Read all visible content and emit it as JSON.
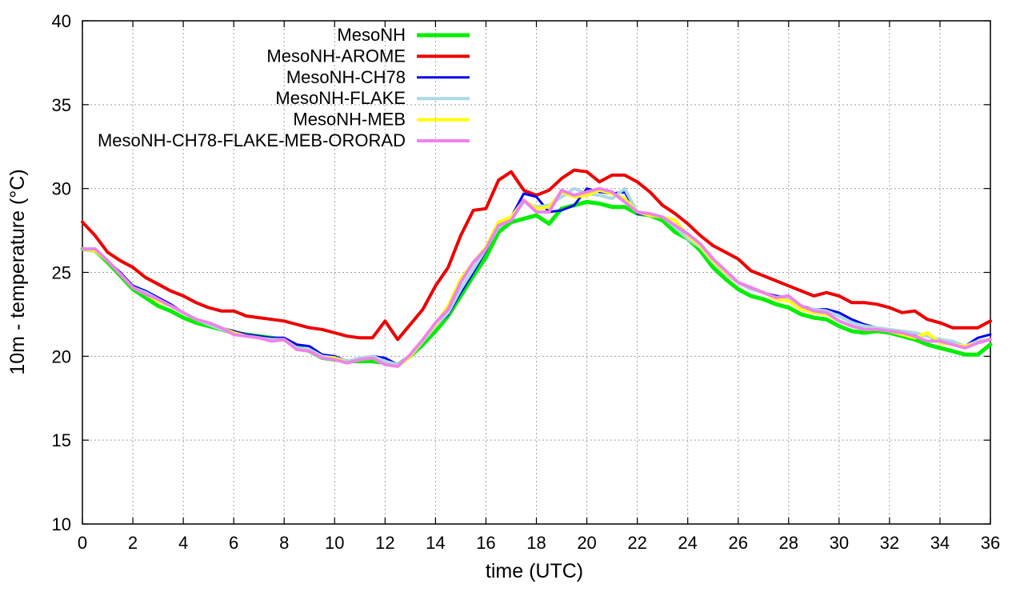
{
  "chart_data": {
    "type": "line",
    "xlabel": "time (UTC)",
    "ylabel": "10m - temperature (°C)",
    "xlim": [
      0,
      36
    ],
    "ylim": [
      10,
      40
    ],
    "xticks": [
      0,
      2,
      4,
      6,
      8,
      10,
      12,
      14,
      16,
      18,
      20,
      22,
      24,
      26,
      28,
      30,
      32,
      34,
      36
    ],
    "yticks": [
      10,
      15,
      20,
      25,
      30,
      35,
      40
    ],
    "grid": true,
    "legend_position": "top-left",
    "series": [
      {
        "name": "MesoNH",
        "color": "#00ee00",
        "width": 5,
        "x": [
          0,
          0.5,
          1,
          1.5,
          2,
          2.5,
          3,
          3.5,
          4,
          4.5,
          5,
          5.5,
          6,
          6.5,
          7,
          7.5,
          8,
          8.5,
          9,
          9.5,
          10,
          10.5,
          11,
          11.5,
          12,
          12.5,
          13,
          13.5,
          14,
          14.5,
          15,
          15.5,
          16,
          16.5,
          17,
          17.5,
          18,
          18.5,
          19,
          19.5,
          20,
          20.5,
          21,
          21.5,
          22,
          22.5,
          23,
          23.5,
          24,
          24.5,
          25,
          25.5,
          26,
          26.5,
          27,
          27.5,
          28,
          28.5,
          29,
          29.5,
          30,
          30.5,
          31,
          31.5,
          32,
          32.5,
          33,
          33.5,
          34,
          34.5,
          35,
          35.5,
          36
        ],
        "y": [
          26.4,
          26.3,
          25.6,
          24.8,
          24.0,
          23.5,
          23.0,
          22.7,
          22.3,
          22.0,
          21.8,
          21.6,
          21.4,
          21.3,
          21.2,
          21.1,
          21.0,
          20.6,
          20.3,
          19.9,
          19.8,
          19.7,
          19.7,
          19.7,
          19.6,
          19.5,
          20.0,
          20.7,
          21.5,
          22.4,
          23.6,
          24.8,
          25.9,
          27.4,
          28.0,
          28.2,
          28.4,
          27.9,
          28.8,
          29.0,
          29.2,
          29.1,
          28.9,
          28.9,
          28.5,
          28.4,
          28.1,
          27.4,
          27.0,
          26.3,
          25.3,
          24.6,
          24.0,
          23.6,
          23.4,
          23.1,
          22.9,
          22.5,
          22.3,
          22.2,
          21.8,
          21.5,
          21.4,
          21.5,
          21.4,
          21.2,
          21.0,
          20.7,
          20.5,
          20.3,
          20.1,
          20.1,
          20.7
        ]
      },
      {
        "name": "MesoNH-AROME",
        "color": "#ee0000",
        "width": 4,
        "x": [
          0,
          0.5,
          1,
          1.5,
          2,
          2.5,
          3,
          3.5,
          4,
          4.5,
          5,
          5.5,
          6,
          6.5,
          7,
          7.5,
          8,
          8.5,
          9,
          9.5,
          10,
          10.5,
          11,
          11.5,
          12,
          12.5,
          13,
          13.5,
          14,
          14.5,
          15,
          15.5,
          16,
          16.5,
          17,
          17.5,
          18,
          18.5,
          19,
          19.5,
          20,
          20.5,
          21,
          21.5,
          22,
          22.5,
          23,
          23.5,
          24,
          24.5,
          25,
          25.5,
          26,
          26.5,
          27,
          27.5,
          28,
          28.5,
          29,
          29.5,
          30,
          30.5,
          31,
          31.5,
          32,
          32.5,
          33,
          33.5,
          34,
          34.5,
          35,
          35.5,
          36
        ],
        "y": [
          28.0,
          27.2,
          26.2,
          25.7,
          25.3,
          24.7,
          24.3,
          23.9,
          23.6,
          23.2,
          22.9,
          22.7,
          22.7,
          22.4,
          22.3,
          22.2,
          22.1,
          21.9,
          21.7,
          21.6,
          21.4,
          21.2,
          21.1,
          21.1,
          22.1,
          21.0,
          21.9,
          22.8,
          24.2,
          25.3,
          27.2,
          28.7,
          28.8,
          30.5,
          31.0,
          29.9,
          29.6,
          29.9,
          30.6,
          31.1,
          31.0,
          30.4,
          30.8,
          30.8,
          30.4,
          29.8,
          29.0,
          28.5,
          27.9,
          27.2,
          26.6,
          26.2,
          25.8,
          25.1,
          24.8,
          24.5,
          24.2,
          23.9,
          23.6,
          23.8,
          23.6,
          23.2,
          23.2,
          23.1,
          22.9,
          22.6,
          22.7,
          22.2,
          22.0,
          21.7,
          21.7,
          21.7,
          22.1
        ]
      },
      {
        "name": "MesoNH-CH78",
        "color": "#0000ee",
        "width": 3,
        "x": [
          0,
          0.5,
          1,
          1.5,
          2,
          2.5,
          3,
          3.5,
          4,
          4.5,
          5,
          5.5,
          6,
          6.5,
          7,
          7.5,
          8,
          8.5,
          9,
          9.5,
          10,
          10.5,
          11,
          11.5,
          12,
          12.5,
          13,
          13.5,
          14,
          14.5,
          15,
          15.5,
          16,
          16.5,
          17,
          17.5,
          18,
          18.5,
          19,
          19.5,
          20,
          20.5,
          21,
          21.5,
          22,
          22.5,
          23,
          23.5,
          24,
          24.5,
          25,
          25.5,
          26,
          26.5,
          27,
          27.5,
          28,
          28.5,
          29,
          29.5,
          30,
          30.5,
          31,
          31.5,
          32,
          32.5,
          33,
          33.5,
          34,
          34.5,
          35,
          35.5,
          36
        ],
        "y": [
          26.4,
          26.3,
          25.7,
          25.0,
          24.2,
          23.9,
          23.5,
          23.1,
          22.6,
          22.2,
          21.9,
          21.7,
          21.5,
          21.3,
          21.2,
          21.1,
          21.1,
          20.7,
          20.6,
          20.1,
          20.0,
          19.7,
          19.9,
          20.0,
          19.9,
          19.5,
          20.0,
          20.9,
          21.8,
          22.5,
          23.8,
          25.0,
          26.3,
          27.8,
          28.3,
          29.7,
          29.5,
          28.6,
          28.7,
          29.0,
          30.0,
          29.8,
          29.7,
          29.8,
          28.5,
          28.4,
          28.3,
          27.8,
          27.1,
          26.6,
          25.6,
          24.9,
          24.4,
          24.0,
          23.8,
          23.6,
          23.5,
          23.0,
          22.8,
          22.8,
          22.6,
          22.2,
          21.9,
          21.7,
          21.6,
          21.4,
          21.3,
          21.2,
          20.9,
          20.8,
          20.6,
          21.1,
          21.3
        ]
      },
      {
        "name": "MesoNH-FLAKE",
        "color": "#add8e6",
        "width": 4,
        "x": [
          0,
          0.5,
          1,
          1.5,
          2,
          2.5,
          3,
          3.5,
          4,
          4.5,
          5,
          5.5,
          6,
          6.5,
          7,
          7.5,
          8,
          8.5,
          9,
          9.5,
          10,
          10.5,
          11,
          11.5,
          12,
          12.5,
          13,
          13.5,
          14,
          14.5,
          15,
          15.5,
          16,
          16.5,
          17,
          17.5,
          18,
          18.5,
          19,
          19.5,
          20,
          20.5,
          21,
          21.5,
          22,
          22.5,
          23,
          23.5,
          24,
          24.5,
          25,
          25.5,
          26,
          26.5,
          27,
          27.5,
          28,
          28.5,
          29,
          29.5,
          30,
          30.5,
          31,
          31.5,
          32,
          32.5,
          33,
          33.5,
          34,
          34.5,
          35,
          35.5,
          36
        ],
        "y": [
          26.4,
          26.3,
          25.7,
          24.9,
          24.1,
          23.8,
          23.4,
          23.0,
          22.6,
          22.2,
          21.9,
          21.6,
          21.4,
          21.2,
          21.1,
          21.0,
          21.0,
          20.5,
          20.4,
          20.0,
          19.9,
          19.7,
          19.9,
          20.0,
          19.7,
          19.5,
          20.0,
          20.9,
          21.8,
          22.6,
          24.0,
          25.2,
          26.4,
          27.7,
          28.2,
          29.2,
          28.9,
          29.0,
          29.5,
          30.0,
          29.7,
          29.6,
          29.4,
          30.0,
          28.6,
          28.4,
          28.3,
          27.7,
          27.0,
          26.5,
          25.6,
          24.9,
          24.4,
          24.0,
          23.8,
          23.5,
          23.4,
          22.9,
          22.8,
          22.7,
          22.4,
          22.0,
          21.8,
          21.7,
          21.6,
          21.5,
          21.4,
          21.2,
          21.0,
          20.9,
          20.6,
          20.9,
          21.0
        ]
      },
      {
        "name": "MesoNH-MEB",
        "color": "#ffff00",
        "width": 4,
        "x": [
          0,
          0.5,
          1,
          1.5,
          2,
          2.5,
          3,
          3.5,
          4,
          4.5,
          5,
          5.5,
          6,
          6.5,
          7,
          7.5,
          8,
          8.5,
          9,
          9.5,
          10,
          10.5,
          11,
          11.5,
          12,
          12.5,
          13,
          13.5,
          14,
          14.5,
          15,
          15.5,
          16,
          16.5,
          17,
          17.5,
          18,
          18.5,
          19,
          19.5,
          20,
          20.5,
          21,
          21.5,
          22,
          22.5,
          23,
          23.5,
          24,
          24.5,
          25,
          25.5,
          26,
          26.5,
          27,
          27.5,
          28,
          28.5,
          29,
          29.5,
          30,
          30.5,
          31,
          31.5,
          32,
          32.5,
          33,
          33.5,
          34,
          34.5,
          35,
          35.5,
          36
        ],
        "y": [
          26.4,
          26.3,
          25.7,
          24.9,
          24.1,
          23.7,
          23.3,
          23.0,
          22.6,
          22.2,
          22.0,
          21.7,
          21.4,
          21.2,
          21.1,
          20.9,
          21.0,
          20.4,
          20.3,
          19.9,
          19.9,
          19.6,
          19.8,
          19.9,
          19.5,
          19.4,
          20.0,
          21.0,
          21.9,
          23.0,
          24.6,
          25.6,
          26.5,
          28.0,
          28.3,
          29.3,
          28.8,
          28.9,
          29.8,
          29.5,
          29.6,
          29.9,
          29.7,
          29.4,
          28.6,
          28.4,
          28.3,
          28.1,
          27.2,
          26.6,
          25.7,
          25.0,
          24.4,
          24.1,
          23.8,
          23.4,
          23.3,
          22.8,
          22.6,
          22.5,
          22.1,
          21.8,
          21.6,
          21.6,
          21.5,
          21.3,
          21.1,
          21.4,
          20.8,
          20.7,
          20.6,
          20.8,
          21.0
        ]
      },
      {
        "name": "MesoNH-CH78-FLAKE-MEB-ORORAD",
        "color": "#ee82ee",
        "width": 4,
        "x": [
          0,
          0.5,
          1,
          1.5,
          2,
          2.5,
          3,
          3.5,
          4,
          4.5,
          5,
          5.5,
          6,
          6.5,
          7,
          7.5,
          8,
          8.5,
          9,
          9.5,
          10,
          10.5,
          11,
          11.5,
          12,
          12.5,
          13,
          13.5,
          14,
          14.5,
          15,
          15.5,
          16,
          16.5,
          17,
          17.5,
          18,
          18.5,
          19,
          19.5,
          20,
          20.5,
          21,
          21.5,
          22,
          22.5,
          23,
          23.5,
          24,
          24.5,
          25,
          25.5,
          26,
          26.5,
          27,
          27.5,
          28,
          28.5,
          29,
          29.5,
          30,
          30.5,
          31,
          31.5,
          32,
          32.5,
          33,
          33.5,
          34,
          34.5,
          35,
          35.5,
          36
        ],
        "y": [
          26.4,
          26.4,
          25.7,
          24.9,
          24.1,
          23.7,
          23.4,
          23.0,
          22.6,
          22.2,
          22.0,
          21.7,
          21.3,
          21.2,
          21.1,
          20.9,
          21.0,
          20.4,
          20.3,
          19.9,
          19.8,
          19.6,
          19.8,
          19.9,
          19.5,
          19.4,
          20.1,
          21.0,
          22.0,
          22.8,
          24.4,
          25.6,
          26.4,
          27.8,
          28.1,
          29.3,
          28.6,
          28.6,
          29.9,
          29.6,
          29.8,
          30.0,
          29.8,
          29.2,
          28.6,
          28.5,
          28.3,
          27.8,
          27.3,
          26.7,
          25.8,
          25.1,
          24.4,
          24.1,
          23.8,
          23.5,
          23.6,
          23.0,
          22.7,
          22.6,
          22.1,
          21.8,
          21.6,
          21.6,
          21.5,
          21.4,
          21.2,
          20.9,
          20.9,
          20.7,
          20.5,
          20.8,
          21.0
        ]
      }
    ]
  }
}
